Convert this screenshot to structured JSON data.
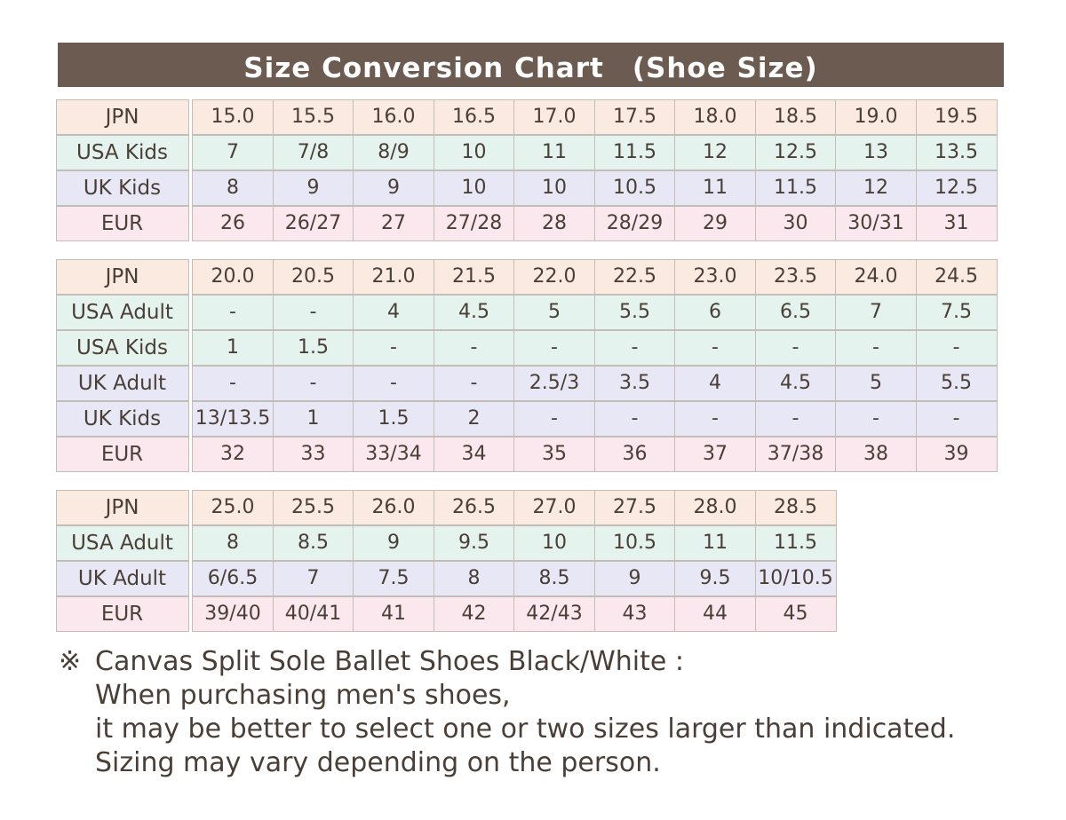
{
  "title": "Size Conversion Chart　(Shoe Size)",
  "colors": {
    "title_bg": "#6b5b50",
    "jpn": "#fbeadf",
    "usa": "#e4f3ee",
    "uk": "#e8e7f6",
    "eur": "#fbe7ee",
    "border": "#c4bcb7"
  },
  "tables": [
    {
      "rows": [
        {
          "label": "JPN",
          "color": "jpn",
          "values": [
            "15.0",
            "15.5",
            "16.0",
            "16.5",
            "17.0",
            "17.5",
            "18.0",
            "18.5",
            "19.0",
            "19.5"
          ]
        },
        {
          "label": "USA Kids",
          "color": "usa",
          "values": [
            "7",
            "7/8",
            "8/9",
            "10",
            "11",
            "11.5",
            "12",
            "12.5",
            "13",
            "13.5"
          ]
        },
        {
          "label": "UK Kids",
          "color": "uk",
          "values": [
            "8",
            "9",
            "9",
            "10",
            "10",
            "10.5",
            "11",
            "11.5",
            "12",
            "12.5"
          ]
        },
        {
          "label": "EUR",
          "color": "eur",
          "values": [
            "26",
            "26/27",
            "27",
            "27/28",
            "28",
            "28/29",
            "29",
            "30",
            "30/31",
            "31"
          ]
        }
      ]
    },
    {
      "rows": [
        {
          "label": "JPN",
          "color": "jpn",
          "values": [
            "20.0",
            "20.5",
            "21.0",
            "21.5",
            "22.0",
            "22.5",
            "23.0",
            "23.5",
            "24.0",
            "24.5"
          ]
        },
        {
          "label": "USA Adult",
          "color": "usa",
          "values": [
            "-",
            "-",
            "4",
            "4.5",
            "5",
            "5.5",
            "6",
            "6.5",
            "7",
            "7.5"
          ]
        },
        {
          "label": "USA Kids",
          "color": "usa",
          "values": [
            "1",
            "1.5",
            "-",
            "-",
            "-",
            "-",
            "-",
            "-",
            "-",
            "-"
          ]
        },
        {
          "label": "UK Adult",
          "color": "uk",
          "values": [
            "-",
            "-",
            "-",
            "-",
            "2.5/3",
            "3.5",
            "4",
            "4.5",
            "5",
            "5.5"
          ]
        },
        {
          "label": "UK Kids",
          "color": "uk",
          "values": [
            "13/13.5",
            "1",
            "1.5",
            "2",
            "-",
            "-",
            "-",
            "-",
            "-",
            "-"
          ]
        },
        {
          "label": "EUR",
          "color": "eur",
          "values": [
            "32",
            "33",
            "33/34",
            "34",
            "35",
            "36",
            "37",
            "37/38",
            "38",
            "39"
          ]
        }
      ]
    },
    {
      "rows": [
        {
          "label": "JPN",
          "color": "jpn",
          "values": [
            "25.0",
            "25.5",
            "26.0",
            "26.5",
            "27.0",
            "27.5",
            "28.0",
            "28.5"
          ]
        },
        {
          "label": "USA Adult",
          "color": "usa",
          "values": [
            "8",
            "8.5",
            "9",
            "9.5",
            "10",
            "10.5",
            "11",
            "11.5"
          ]
        },
        {
          "label": "UK Adult",
          "color": "uk",
          "values": [
            "6/6.5",
            "7",
            "7.5",
            "8",
            "8.5",
            "9",
            "9.5",
            "10/10.5"
          ]
        },
        {
          "label": "EUR",
          "color": "eur",
          "values": [
            "39/40",
            "40/41",
            "41",
            "42",
            "42/43",
            "43",
            "44",
            "45"
          ]
        }
      ]
    }
  ],
  "note": {
    "mark": "※",
    "lines": [
      "Canvas Split Sole Ballet Shoes Black/White :",
      "When purchasing men's shoes,",
      "it may be better to select one or two sizes larger than indicated.",
      "Sizing may vary depending on the person."
    ]
  }
}
